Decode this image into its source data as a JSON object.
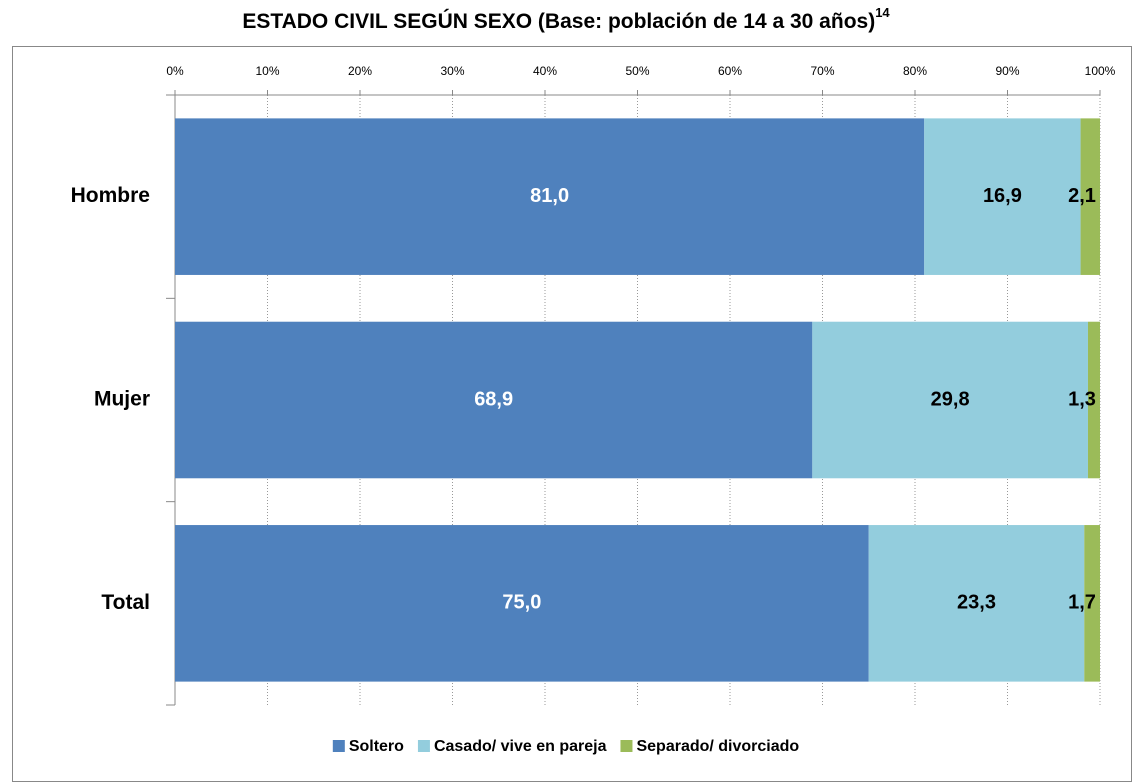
{
  "chart_data": {
    "type": "stacked-bar-horizontal",
    "title": "ESTADO CIVIL SEGÚN SEXO (Base: población de 14 a 30 años)",
    "title_note": "14",
    "categories": [
      "Hombre",
      "Mujer",
      "Total"
    ],
    "series": [
      {
        "name": "Soltero",
        "color": "#4f81bd",
        "label_color": "#ffffff",
        "values": [
          81.0,
          68.9,
          75.0
        ],
        "value_labels": [
          "81,0",
          "68,9",
          "75,0"
        ]
      },
      {
        "name": "Casado/ vive en pareja",
        "color": "#93cddd",
        "label_color": "#000000",
        "values": [
          16.9,
          29.8,
          23.3
        ],
        "value_labels": [
          "16,9",
          "29,8",
          "23,3"
        ]
      },
      {
        "name": "Separado/ divorciado",
        "color": "#9bbb59",
        "label_color": "#000000",
        "values": [
          2.1,
          1.3,
          1.7
        ],
        "value_labels": [
          "2,1",
          "1,3",
          "1,7"
        ]
      }
    ],
    "xlim": [
      0,
      100
    ],
    "xticks": [
      {
        "value": 0,
        "label": "0%"
      },
      {
        "value": 10,
        "label": "10%"
      },
      {
        "value": 20,
        "label": "20%"
      },
      {
        "value": 30,
        "label": "30%"
      },
      {
        "value": 40,
        "label": "40%"
      },
      {
        "value": 50,
        "label": "50%"
      },
      {
        "value": 60,
        "label": "60%"
      },
      {
        "value": 70,
        "label": "70%"
      },
      {
        "value": 80,
        "label": "80%"
      },
      {
        "value": 90,
        "label": "90%"
      },
      {
        "value": 100,
        "label": "100%"
      }
    ],
    "grid": true,
    "legend": "bottom"
  }
}
